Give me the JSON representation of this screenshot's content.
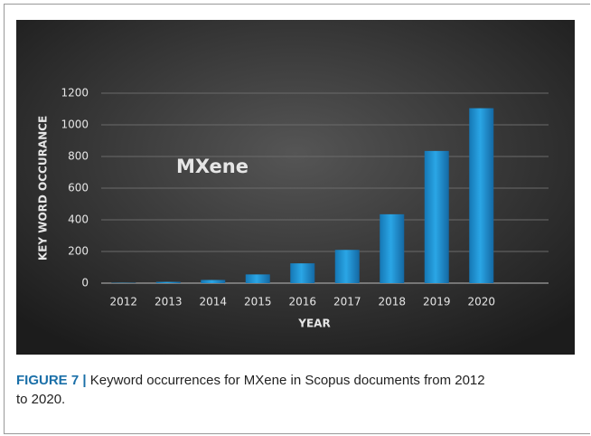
{
  "chart_data": {
    "type": "bar",
    "annotation": "MXene",
    "xlabel": "YEAR",
    "ylabel": "KEY WORD OCCURANCE",
    "categories": [
      "2012",
      "2013",
      "2014",
      "2015",
      "2016",
      "2017",
      "2018",
      "2019",
      "2020"
    ],
    "values": [
      2,
      8,
      20,
      55,
      125,
      210,
      435,
      835,
      1105
    ],
    "color": "#2aa6e6",
    "ylim": [
      0,
      1200
    ],
    "yticks": [
      0,
      200,
      400,
      600,
      800,
      1000,
      1200
    ],
    "grid": true
  },
  "caption": {
    "label": "FIGURE 7 |",
    "text": "Keyword occurrences for MXene in Scopus documents from 2012 to 2020."
  }
}
